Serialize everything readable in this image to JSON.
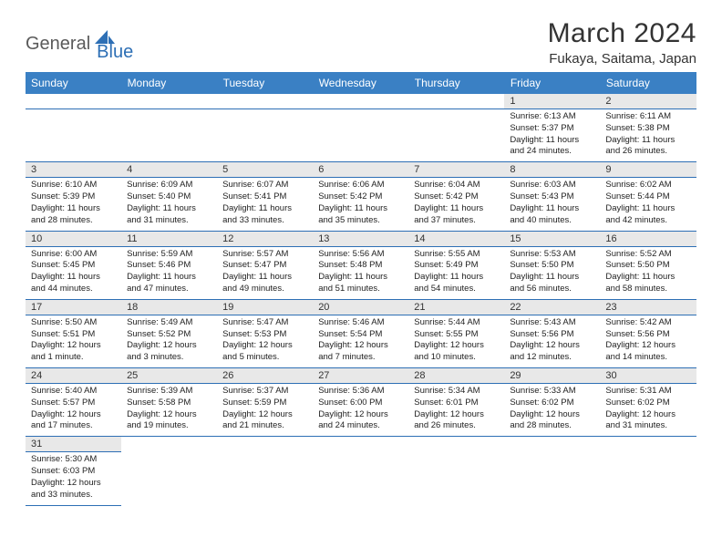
{
  "logo": {
    "part1": "General",
    "part2": "Blue"
  },
  "title": "March 2024",
  "subtitle": "Fukaya, Saitama, Japan",
  "colors": {
    "header_bg": "#3a80c4",
    "header_text": "#ffffff",
    "daynum_bg": "#e8e8e8",
    "border": "#2d6fb5",
    "logo_gray": "#5a5a5a",
    "logo_blue": "#2d6fb5"
  },
  "dayHeaders": [
    "Sunday",
    "Monday",
    "Tuesday",
    "Wednesday",
    "Thursday",
    "Friday",
    "Saturday"
  ],
  "weeks": [
    [
      null,
      null,
      null,
      null,
      null,
      {
        "n": "1",
        "sr": "6:13 AM",
        "ss": "5:37 PM",
        "dl": "11 hours and 24 minutes."
      },
      {
        "n": "2",
        "sr": "6:11 AM",
        "ss": "5:38 PM",
        "dl": "11 hours and 26 minutes."
      }
    ],
    [
      {
        "n": "3",
        "sr": "6:10 AM",
        "ss": "5:39 PM",
        "dl": "11 hours and 28 minutes."
      },
      {
        "n": "4",
        "sr": "6:09 AM",
        "ss": "5:40 PM",
        "dl": "11 hours and 31 minutes."
      },
      {
        "n": "5",
        "sr": "6:07 AM",
        "ss": "5:41 PM",
        "dl": "11 hours and 33 minutes."
      },
      {
        "n": "6",
        "sr": "6:06 AM",
        "ss": "5:42 PM",
        "dl": "11 hours and 35 minutes."
      },
      {
        "n": "7",
        "sr": "6:04 AM",
        "ss": "5:42 PM",
        "dl": "11 hours and 37 minutes."
      },
      {
        "n": "8",
        "sr": "6:03 AM",
        "ss": "5:43 PM",
        "dl": "11 hours and 40 minutes."
      },
      {
        "n": "9",
        "sr": "6:02 AM",
        "ss": "5:44 PM",
        "dl": "11 hours and 42 minutes."
      }
    ],
    [
      {
        "n": "10",
        "sr": "6:00 AM",
        "ss": "5:45 PM",
        "dl": "11 hours and 44 minutes."
      },
      {
        "n": "11",
        "sr": "5:59 AM",
        "ss": "5:46 PM",
        "dl": "11 hours and 47 minutes."
      },
      {
        "n": "12",
        "sr": "5:57 AM",
        "ss": "5:47 PM",
        "dl": "11 hours and 49 minutes."
      },
      {
        "n": "13",
        "sr": "5:56 AM",
        "ss": "5:48 PM",
        "dl": "11 hours and 51 minutes."
      },
      {
        "n": "14",
        "sr": "5:55 AM",
        "ss": "5:49 PM",
        "dl": "11 hours and 54 minutes."
      },
      {
        "n": "15",
        "sr": "5:53 AM",
        "ss": "5:50 PM",
        "dl": "11 hours and 56 minutes."
      },
      {
        "n": "16",
        "sr": "5:52 AM",
        "ss": "5:50 PM",
        "dl": "11 hours and 58 minutes."
      }
    ],
    [
      {
        "n": "17",
        "sr": "5:50 AM",
        "ss": "5:51 PM",
        "dl": "12 hours and 1 minute."
      },
      {
        "n": "18",
        "sr": "5:49 AM",
        "ss": "5:52 PM",
        "dl": "12 hours and 3 minutes."
      },
      {
        "n": "19",
        "sr": "5:47 AM",
        "ss": "5:53 PM",
        "dl": "12 hours and 5 minutes."
      },
      {
        "n": "20",
        "sr": "5:46 AM",
        "ss": "5:54 PM",
        "dl": "12 hours and 7 minutes."
      },
      {
        "n": "21",
        "sr": "5:44 AM",
        "ss": "5:55 PM",
        "dl": "12 hours and 10 minutes."
      },
      {
        "n": "22",
        "sr": "5:43 AM",
        "ss": "5:56 PM",
        "dl": "12 hours and 12 minutes."
      },
      {
        "n": "23",
        "sr": "5:42 AM",
        "ss": "5:56 PM",
        "dl": "12 hours and 14 minutes."
      }
    ],
    [
      {
        "n": "24",
        "sr": "5:40 AM",
        "ss": "5:57 PM",
        "dl": "12 hours and 17 minutes."
      },
      {
        "n": "25",
        "sr": "5:39 AM",
        "ss": "5:58 PM",
        "dl": "12 hours and 19 minutes."
      },
      {
        "n": "26",
        "sr": "5:37 AM",
        "ss": "5:59 PM",
        "dl": "12 hours and 21 minutes."
      },
      {
        "n": "27",
        "sr": "5:36 AM",
        "ss": "6:00 PM",
        "dl": "12 hours and 24 minutes."
      },
      {
        "n": "28",
        "sr": "5:34 AM",
        "ss": "6:01 PM",
        "dl": "12 hours and 26 minutes."
      },
      {
        "n": "29",
        "sr": "5:33 AM",
        "ss": "6:02 PM",
        "dl": "12 hours and 28 minutes."
      },
      {
        "n": "30",
        "sr": "5:31 AM",
        "ss": "6:02 PM",
        "dl": "12 hours and 31 minutes."
      }
    ],
    [
      {
        "n": "31",
        "sr": "5:30 AM",
        "ss": "6:03 PM",
        "dl": "12 hours and 33 minutes."
      },
      null,
      null,
      null,
      null,
      null,
      null
    ]
  ],
  "labels": {
    "sunrise": "Sunrise: ",
    "sunset": "Sunset: ",
    "daylight": "Daylight: "
  }
}
